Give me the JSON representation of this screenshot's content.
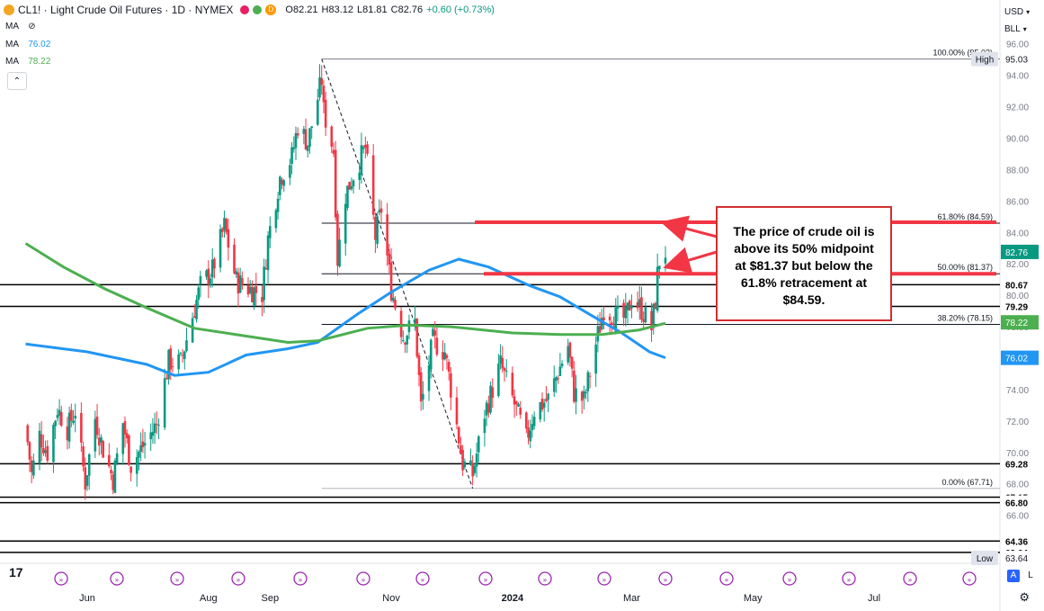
{
  "header": {
    "symbol": "CL1! · Light Crude Oil Futures · 1D · NYMEX",
    "badge_d": "D",
    "o": "O82.21",
    "h": "H83.12",
    "l": "L81.81",
    "c": "C82.76",
    "chg": "+0.60 (+0.73%)",
    "ma1_label": "MA",
    "ma2_label": "MA",
    "ma2_value": "76.02",
    "ma3_label": "MA",
    "ma3_value": "78.22"
  },
  "top_right": {
    "currency": "USD",
    "unit": "BLL"
  },
  "colors": {
    "up": "#089981",
    "down": "#f23645",
    "ma_blue": "#2196f3",
    "ma_green": "#4caf50",
    "red_line": "#f23645",
    "last": "#089981"
  },
  "chart_data": {
    "type": "candlestick",
    "ylim": [
      63,
      96.5
    ],
    "y_ticks": [
      64,
      66,
      68,
      70,
      72,
      74,
      76,
      78,
      80,
      82,
      84,
      86,
      88,
      90,
      92,
      94,
      96
    ],
    "y_tick_labels": [
      "64.00",
      "66.00",
      "68.00",
      "70.00",
      "72.00",
      "74.00",
      "76.00",
      "78.00",
      "80.00",
      "82.00",
      "84.00",
      "86.00",
      "88.00",
      "90.00",
      "92.00",
      "94.00",
      "96.00"
    ],
    "x_labels": [
      "Jun",
      "Aug",
      "Sep",
      "Nov",
      "2024",
      "Mar",
      "May",
      "Jul"
    ],
    "x_label_dates": [
      "2023-06-01",
      "2023-08-01",
      "2023-09-01",
      "2023-11-01",
      "2024-01-01",
      "2024-03-01",
      "2024-05-01",
      "2024-07-01"
    ],
    "price_path_close": [
      [
        "2023-05-01",
        71.7
      ],
      [
        "2023-05-04",
        68.6
      ],
      [
        "2023-05-08",
        71.1
      ],
      [
        "2023-05-12",
        70.0
      ],
      [
        "2023-05-17",
        72.8
      ],
      [
        "2023-05-22",
        71.5
      ],
      [
        "2023-05-26",
        72.7
      ],
      [
        "2023-05-31",
        68.1
      ],
      [
        "2023-06-05",
        72.2
      ],
      [
        "2023-06-09",
        70.2
      ],
      [
        "2023-06-14",
        68.3
      ],
      [
        "2023-06-19",
        71.9
      ],
      [
        "2023-06-23",
        69.2
      ],
      [
        "2023-06-29",
        70.4
      ],
      [
        "2023-07-06",
        71.8
      ],
      [
        "2023-07-12",
        75.8
      ],
      [
        "2023-07-18",
        75.7
      ],
      [
        "2023-07-24",
        78.7
      ],
      [
        "2023-07-28",
        80.6
      ],
      [
        "2023-08-03",
        81.6
      ],
      [
        "2023-08-09",
        84.4
      ],
      [
        "2023-08-15",
        80.9
      ],
      [
        "2023-08-22",
        80.4
      ],
      [
        "2023-08-28",
        80.1
      ],
      [
        "2023-08-31",
        83.6
      ],
      [
        "2023-09-06",
        87.5
      ],
      [
        "2023-09-12",
        88.8
      ],
      [
        "2023-09-15",
        90.8
      ],
      [
        "2023-09-20",
        89.7
      ],
      [
        "2023-09-27",
        93.7
      ],
      [
        "2023-09-28",
        91.7
      ],
      [
        "2023-10-03",
        89.2
      ],
      [
        "2023-10-05",
        82.3
      ],
      [
        "2023-10-09",
        86.4
      ],
      [
        "2023-10-13",
        87.7
      ],
      [
        "2023-10-19",
        89.4
      ],
      [
        "2023-10-24",
        83.7
      ],
      [
        "2023-10-27",
        85.5
      ],
      [
        "2023-11-01",
        80.4
      ],
      [
        "2023-11-07",
        77.4
      ],
      [
        "2023-11-13",
        78.3
      ],
      [
        "2023-11-16",
        72.9
      ],
      [
        "2023-11-22",
        77.1
      ],
      [
        "2023-11-28",
        76.4
      ],
      [
        "2023-12-01",
        74.1
      ],
      [
        "2023-12-07",
        69.3
      ],
      [
        "2023-12-12",
        68.6
      ],
      [
        "2023-12-18",
        72.5
      ],
      [
        "2023-12-26",
        75.6
      ],
      [
        "2024-01-03",
        72.7
      ],
      [
        "2024-01-08",
        70.8
      ],
      [
        "2024-01-12",
        72.7
      ],
      [
        "2024-01-19",
        73.4
      ],
      [
        "2024-01-24",
        75.1
      ],
      [
        "2024-01-29",
        76.8
      ],
      [
        "2024-02-01",
        73.8
      ],
      [
        "2024-02-06",
        73.3
      ],
      [
        "2024-02-12",
        76.9
      ],
      [
        "2024-02-16",
        79.2
      ],
      [
        "2024-02-22",
        78.6
      ],
      [
        "2024-02-27",
        78.5
      ],
      [
        "2024-03-01",
        79.9
      ],
      [
        "2024-03-06",
        79.1
      ],
      [
        "2024-03-11",
        77.9
      ],
      [
        "2024-03-13",
        79.7
      ],
      [
        "2024-03-14",
        81.3
      ],
      [
        "2024-03-15",
        82.2
      ],
      [
        "2024-03-18",
        82.76
      ]
    ],
    "ma_series": [
      {
        "name": "MA 76.02",
        "color": "#2196f3",
        "points": [
          [
            "2023-05-01",
            76.9
          ],
          [
            "2023-06-01",
            76.4
          ],
          [
            "2023-07-01",
            75.6
          ],
          [
            "2023-07-15",
            74.9
          ],
          [
            "2023-08-01",
            75.1
          ],
          [
            "2023-08-20",
            76.2
          ],
          [
            "2023-09-10",
            76.6
          ],
          [
            "2023-09-25",
            77.0
          ],
          [
            "2023-10-15",
            78.8
          ],
          [
            "2023-11-01",
            80.2
          ],
          [
            "2023-11-20",
            81.6
          ],
          [
            "2023-12-05",
            82.3
          ],
          [
            "2023-12-20",
            81.8
          ],
          [
            "2024-01-10",
            80.6
          ],
          [
            "2024-01-25",
            79.9
          ],
          [
            "2024-02-10",
            78.7
          ],
          [
            "2024-02-25",
            77.6
          ],
          [
            "2024-03-10",
            76.4
          ],
          [
            "2024-03-18",
            76.02
          ]
        ]
      },
      {
        "name": "MA 78.22",
        "color": "#4caf50",
        "points": [
          [
            "2023-05-01",
            83.3
          ],
          [
            "2023-05-20",
            81.8
          ],
          [
            "2023-06-10",
            80.4
          ],
          [
            "2023-07-01",
            79.2
          ],
          [
            "2023-07-25",
            77.9
          ],
          [
            "2023-08-20",
            77.4
          ],
          [
            "2023-09-10",
            77.0
          ],
          [
            "2023-09-25",
            77.1
          ],
          [
            "2023-10-20",
            77.9
          ],
          [
            "2023-11-10",
            78.1
          ],
          [
            "2023-12-01",
            78.0
          ],
          [
            "2024-01-01",
            77.6
          ],
          [
            "2024-01-25",
            77.5
          ],
          [
            "2024-02-15",
            77.5
          ],
          [
            "2024-03-05",
            77.8
          ],
          [
            "2024-03-18",
            78.22
          ]
        ]
      }
    ],
    "fib_levels": [
      {
        "label": "100.00% (95.03)",
        "value": 95.03
      },
      {
        "label": "61.80% (84.59)",
        "value": 84.59
      },
      {
        "label": "50.00% (81.37)",
        "value": 81.37
      },
      {
        "label": "38.20% (78.15)",
        "value": 78.15
      },
      {
        "label": "0.00% (67.71)",
        "value": 67.71
      }
    ],
    "horizontal_levels": [
      80.67,
      79.29,
      69.28,
      67.15,
      66.8,
      64.36,
      63.64
    ],
    "axis_badges": [
      {
        "text": "95.03",
        "value": 95.03,
        "style": "plain"
      },
      {
        "text": "High",
        "value": 95.03,
        "style": "tag"
      },
      {
        "text": "82.76",
        "value": 82.76,
        "style": "green"
      },
      {
        "text": "80.67",
        "value": 80.67,
        "style": "dark"
      },
      {
        "text": "79.29",
        "value": 79.29,
        "style": "dark"
      },
      {
        "text": "78.22",
        "value": 78.22,
        "style": "green"
      },
      {
        "text": "76.02",
        "value": 76.02,
        "style": "blue"
      },
      {
        "text": "69.28",
        "value": 69.28,
        "style": "dark"
      },
      {
        "text": "67.15",
        "value": 67.15,
        "style": "dark"
      },
      {
        "text": "66.80",
        "value": 66.8,
        "style": "dark"
      },
      {
        "text": "64.36",
        "value": 64.36,
        "style": "dark"
      },
      {
        "text": "63.64",
        "value": 63.64,
        "style": "dark"
      },
      {
        "text": "63.64",
        "value": 63.64,
        "style": "plain-low"
      },
      {
        "text": "Low",
        "value": 63.64,
        "style": "tag-low"
      }
    ],
    "annotation": "The price of crude oil is above its 50% midpoint at $81.37 but below the 61.8% retracement at $84.59."
  }
}
